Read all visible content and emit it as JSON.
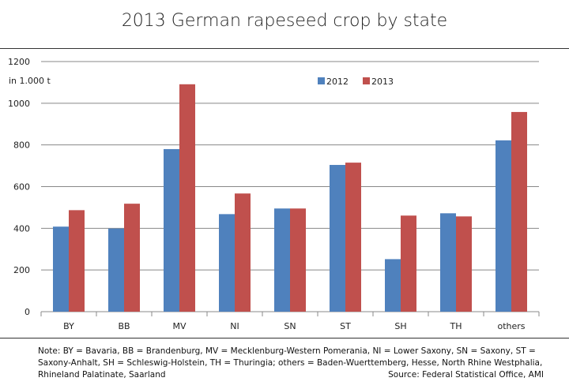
{
  "chart_data": {
    "type": "bar",
    "title": "2013 German rapeseed crop by state",
    "ylabel": "in 1.000  t",
    "xlabel": "",
    "categories": [
      "BY",
      "BB",
      "MV",
      "NI",
      "SN",
      "ST",
      "SH",
      "TH",
      "others"
    ],
    "series": [
      {
        "name": "2012",
        "color": "#4f81bd",
        "values": [
          408,
          399,
          780,
          468,
          495,
          704,
          252,
          472,
          822
        ]
      },
      {
        "name": "2013",
        "color": "#c0504d",
        "values": [
          487,
          518,
          1091,
          567,
          495,
          715,
          461,
          457,
          958
        ]
      }
    ],
    "ylim": [
      0,
      1200
    ],
    "yticks": [
      0,
      200,
      400,
      600,
      800,
      1000,
      1200
    ],
    "grid": true,
    "legend": "top-center"
  },
  "note": "Note: BY = Bavaria,  BB = Brandenburg, MV = Mecklenburg-Western Pomerania, NI = Lower Saxony, SN = Saxony, ST = Saxony-Anhalt, SH = Schleswig-Holstein, TH = Thuringia; others = Baden-Wuerttemberg, Hesse,  North Rhine Westphalia, Rhineland Palatinate, Saarland",
  "source": "Source: Federal Statistical Office, AMI"
}
